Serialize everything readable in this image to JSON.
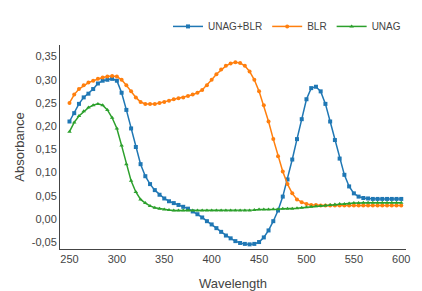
{
  "chart_data": {
    "type": "line",
    "xlabel": "Wavelength",
    "ylabel": "Absorbance",
    "xlim": [
      240,
      605
    ],
    "ylim": [
      -0.065,
      0.375
    ],
    "xticks": [
      250,
      300,
      350,
      400,
      450,
      500,
      550,
      600
    ],
    "yticks": [
      {
        "value": -0.05,
        "label": "-0,05"
      },
      {
        "value": 0.0,
        "label": "0,00"
      },
      {
        "value": 0.05,
        "label": "0,05"
      },
      {
        "value": 0.1,
        "label": "0,10"
      },
      {
        "value": 0.15,
        "label": "0,15"
      },
      {
        "value": 0.2,
        "label": "0,20"
      },
      {
        "value": 0.25,
        "label": "0,25"
      },
      {
        "value": 0.3,
        "label": "0,30"
      },
      {
        "value": 0.35,
        "label": "0,35"
      }
    ],
    "grid": false,
    "legend": "upper right",
    "x": [
      250,
      255,
      260,
      265,
      270,
      275,
      280,
      285,
      290,
      295,
      300,
      305,
      310,
      315,
      320,
      325,
      330,
      335,
      340,
      345,
      350,
      355,
      360,
      365,
      370,
      375,
      380,
      385,
      390,
      395,
      400,
      405,
      410,
      415,
      420,
      425,
      430,
      435,
      440,
      445,
      450,
      455,
      460,
      465,
      470,
      475,
      480,
      485,
      490,
      495,
      500,
      505,
      510,
      515,
      520,
      525,
      530,
      535,
      540,
      545,
      550,
      555,
      560,
      565,
      570,
      575,
      580,
      585,
      590,
      595,
      600
    ],
    "series": [
      {
        "name": "UNAG+BLR",
        "marker": "square",
        "values": [
          0.21,
          0.228,
          0.248,
          0.262,
          0.27,
          0.28,
          0.292,
          0.298,
          0.3,
          0.302,
          0.298,
          0.272,
          0.235,
          0.195,
          0.155,
          0.118,
          0.092,
          0.075,
          0.062,
          0.052,
          0.044,
          0.038,
          0.034,
          0.03,
          0.026,
          0.022,
          0.016,
          0.01,
          0.003,
          -0.005,
          -0.012,
          -0.02,
          -0.028,
          -0.036,
          -0.042,
          -0.048,
          -0.052,
          -0.054,
          -0.055,
          -0.054,
          -0.05,
          -0.04,
          -0.025,
          -0.005,
          0.018,
          0.048,
          0.085,
          0.128,
          0.172,
          0.215,
          0.258,
          0.282,
          0.285,
          0.275,
          0.248,
          0.21,
          0.17,
          0.13,
          0.095,
          0.07,
          0.055,
          0.048,
          0.045,
          0.044,
          0.043,
          0.043,
          0.043,
          0.043,
          0.043,
          0.043,
          0.043
        ]
      },
      {
        "name": "BLR",
        "marker": "circle",
        "values": [
          0.25,
          0.268,
          0.28,
          0.288,
          0.294,
          0.298,
          0.302,
          0.305,
          0.307,
          0.308,
          0.307,
          0.3,
          0.288,
          0.275,
          0.262,
          0.252,
          0.248,
          0.248,
          0.248,
          0.25,
          0.252,
          0.255,
          0.258,
          0.26,
          0.262,
          0.265,
          0.268,
          0.272,
          0.278,
          0.288,
          0.3,
          0.312,
          0.322,
          0.33,
          0.335,
          0.338,
          0.336,
          0.33,
          0.318,
          0.3,
          0.275,
          0.245,
          0.21,
          0.172,
          0.135,
          0.102,
          0.075,
          0.055,
          0.042,
          0.036,
          0.032,
          0.03,
          0.03,
          0.029,
          0.029,
          0.029,
          0.029,
          0.029,
          0.029,
          0.029,
          0.029,
          0.029,
          0.029,
          0.029,
          0.029,
          0.029,
          0.029,
          0.029,
          0.029,
          0.029,
          0.029
        ]
      },
      {
        "name": "UNAG",
        "marker": "triangle-up",
        "values": [
          0.188,
          0.208,
          0.222,
          0.232,
          0.24,
          0.245,
          0.248,
          0.245,
          0.235,
          0.218,
          0.195,
          0.158,
          0.118,
          0.082,
          0.058,
          0.042,
          0.034,
          0.028,
          0.024,
          0.022,
          0.02,
          0.019,
          0.018,
          0.018,
          0.018,
          0.018,
          0.018,
          0.018,
          0.018,
          0.018,
          0.018,
          0.018,
          0.018,
          0.018,
          0.018,
          0.018,
          0.018,
          0.018,
          0.018,
          0.019,
          0.02,
          0.02,
          0.02,
          0.021,
          0.021,
          0.022,
          0.022,
          0.022,
          0.023,
          0.024,
          0.025,
          0.026,
          0.027,
          0.028,
          0.029,
          0.03,
          0.031,
          0.032,
          0.032,
          0.033,
          0.034,
          0.034,
          0.035,
          0.035,
          0.035,
          0.035,
          0.035,
          0.035,
          0.035,
          0.035,
          0.035
        ]
      }
    ]
  }
}
